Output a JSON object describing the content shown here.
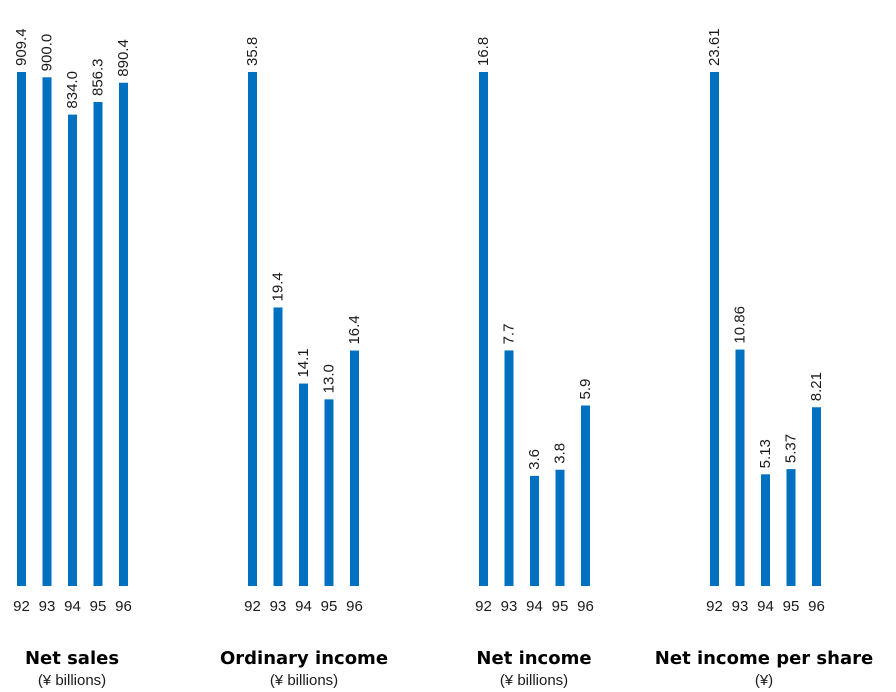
{
  "chart_data": [
    {
      "type": "bar",
      "title": "Net sales",
      "subtitle": "(¥ billions)",
      "categories": [
        "92",
        "93",
        "94",
        "95",
        "96"
      ],
      "values": [
        909.4,
        900.0,
        834.0,
        856.3,
        890.4
      ],
      "value_labels": [
        "909.4",
        "900.0",
        "834.0",
        "856.3",
        "890.4"
      ],
      "bar_color": "#0070c0"
    },
    {
      "type": "bar",
      "title": "Ordinary income",
      "subtitle": "(¥ billions)",
      "categories": [
        "92",
        "93",
        "94",
        "95",
        "96"
      ],
      "values": [
        35.8,
        19.4,
        14.1,
        13.0,
        16.4
      ],
      "value_labels": [
        "35.8",
        "19.4",
        "14.1",
        "13.0",
        "16.4"
      ],
      "bar_color": "#0070c0"
    },
    {
      "type": "bar",
      "title": "Net income",
      "subtitle": "(¥ billions)",
      "categories": [
        "92",
        "93",
        "94",
        "95",
        "96"
      ],
      "values": [
        16.8,
        7.7,
        3.6,
        3.8,
        5.9
      ],
      "value_labels": [
        "16.8",
        "7.7",
        "3.6",
        "3.8",
        "5.9"
      ],
      "bar_color": "#0070c0"
    },
    {
      "type": "bar",
      "title": "Net income per share",
      "subtitle": "(¥)",
      "categories": [
        "92",
        "93",
        "94",
        "95",
        "96"
      ],
      "values": [
        23.61,
        10.86,
        5.13,
        5.37,
        8.21
      ],
      "value_labels": [
        "23.61",
        "10.86",
        "5.13",
        "5.37",
        "8.21"
      ],
      "bar_color": "#0070c0"
    }
  ]
}
